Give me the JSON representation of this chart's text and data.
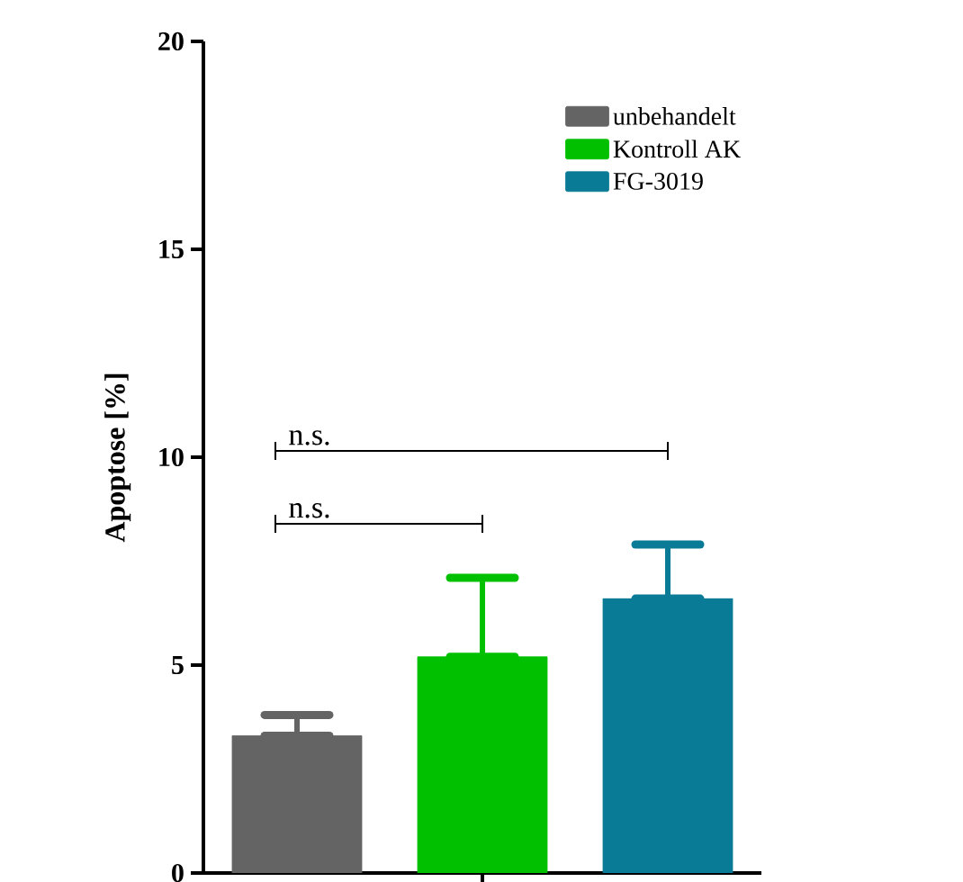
{
  "chart_data": {
    "type": "bar",
    "ylabel": "Apoptose [%]",
    "categories": [
      null
    ],
    "series": [
      {
        "name": "unbehandelt",
        "color": "#646464",
        "values": [
          3.3
        ],
        "errors": [
          [
            3.3,
            3.8
          ]
        ]
      },
      {
        "name": "Kontroll AK",
        "color": "#00c000",
        "values": [
          5.2
        ],
        "errors": [
          [
            5.2,
            7.1
          ]
        ]
      },
      {
        "name": "FG-3019",
        "color": "#0a7b96",
        "values": [
          6.6
        ],
        "errors": [
          [
            6.6,
            7.9
          ]
        ]
      }
    ],
    "ylim": [
      0,
      20
    ],
    "yticks": [
      0,
      5,
      10,
      15,
      20
    ],
    "grid": false,
    "legend": "top right",
    "annotations": [
      "n.s.",
      "n.s."
    ]
  }
}
